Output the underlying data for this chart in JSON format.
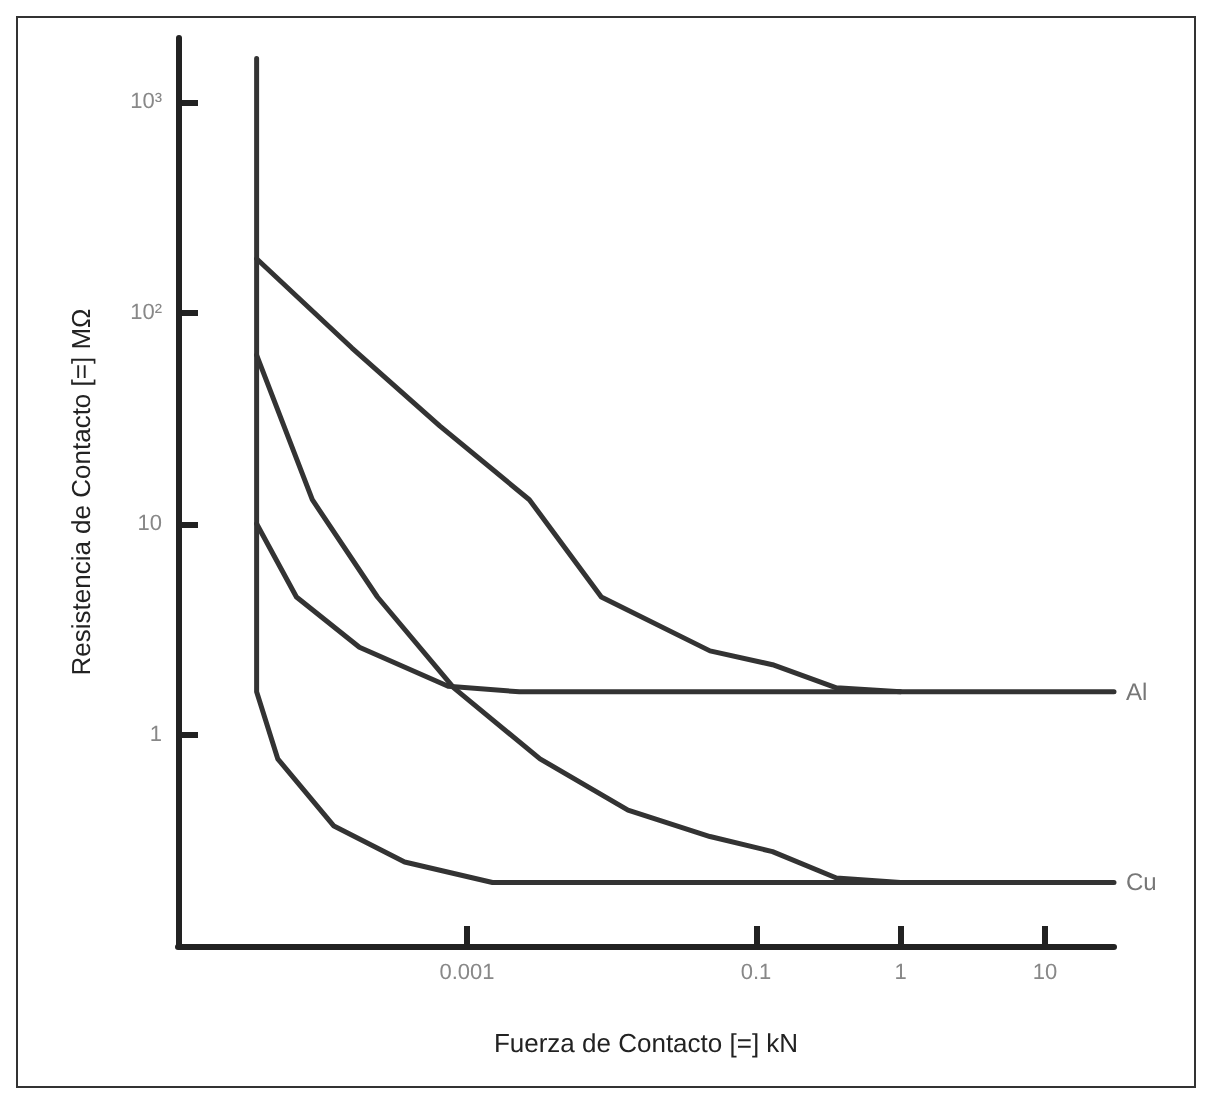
{
  "chart_data": {
    "type": "line",
    "xlabel": "Fuerza de Contacto [=] kN",
    "ylabel": "Resistencia de Contacto [=] MΩ",
    "log": "xy",
    "xlim": [
      1e-05,
      30
    ],
    "ylim": [
      0.1,
      2000
    ],
    "xticks": [
      0.001,
      0.1,
      1,
      10
    ],
    "yticks": [
      1,
      10,
      {
        "value": 100,
        "label": "10²"
      },
      {
        "value": 1000,
        "label": "10³"
      }
    ],
    "grid": false,
    "legend": false,
    "marker": "none",
    "line_style": "solid",
    "series": [
      {
        "color": "#333333",
        "x": [
          3.5e-05,
          0.00016,
          0.00065,
          0.0027,
          0.0085,
          0.048,
          0.13,
          0.36,
          1
        ],
        "values": [
          180,
          68,
          29,
          13,
          4.5,
          2.5,
          2.15,
          1.67,
          1.6
        ]
      },
      {
        "color": "#333333",
        "x": [
          3.5e-05,
          8.5e-05,
          0.00024,
          0.00081,
          0.0032,
          0.013,
          0.048,
          0.13,
          0.36,
          1
        ],
        "values": [
          63,
          13,
          4.5,
          1.67,
          0.77,
          0.44,
          0.33,
          0.28,
          0.21,
          0.2
        ]
      },
      {
        "name": "Al",
        "color": "#333333",
        "x": [
          3.5e-05,
          6.6e-05,
          0.00018,
          0.00074,
          0.0023,
          30
        ],
        "values": [
          10,
          4.5,
          2.6,
          1.7,
          1.6,
          1.6
        ]
      },
      {
        "name": "Cu",
        "color": "#333333",
        "x": [
          3.5e-05,
          3.5e-05,
          4.9e-05,
          0.00012,
          0.00037,
          0.0015,
          30
        ],
        "values": [
          1600,
          1.6,
          0.77,
          0.37,
          0.25,
          0.2,
          0.2
        ]
      }
    ]
  }
}
